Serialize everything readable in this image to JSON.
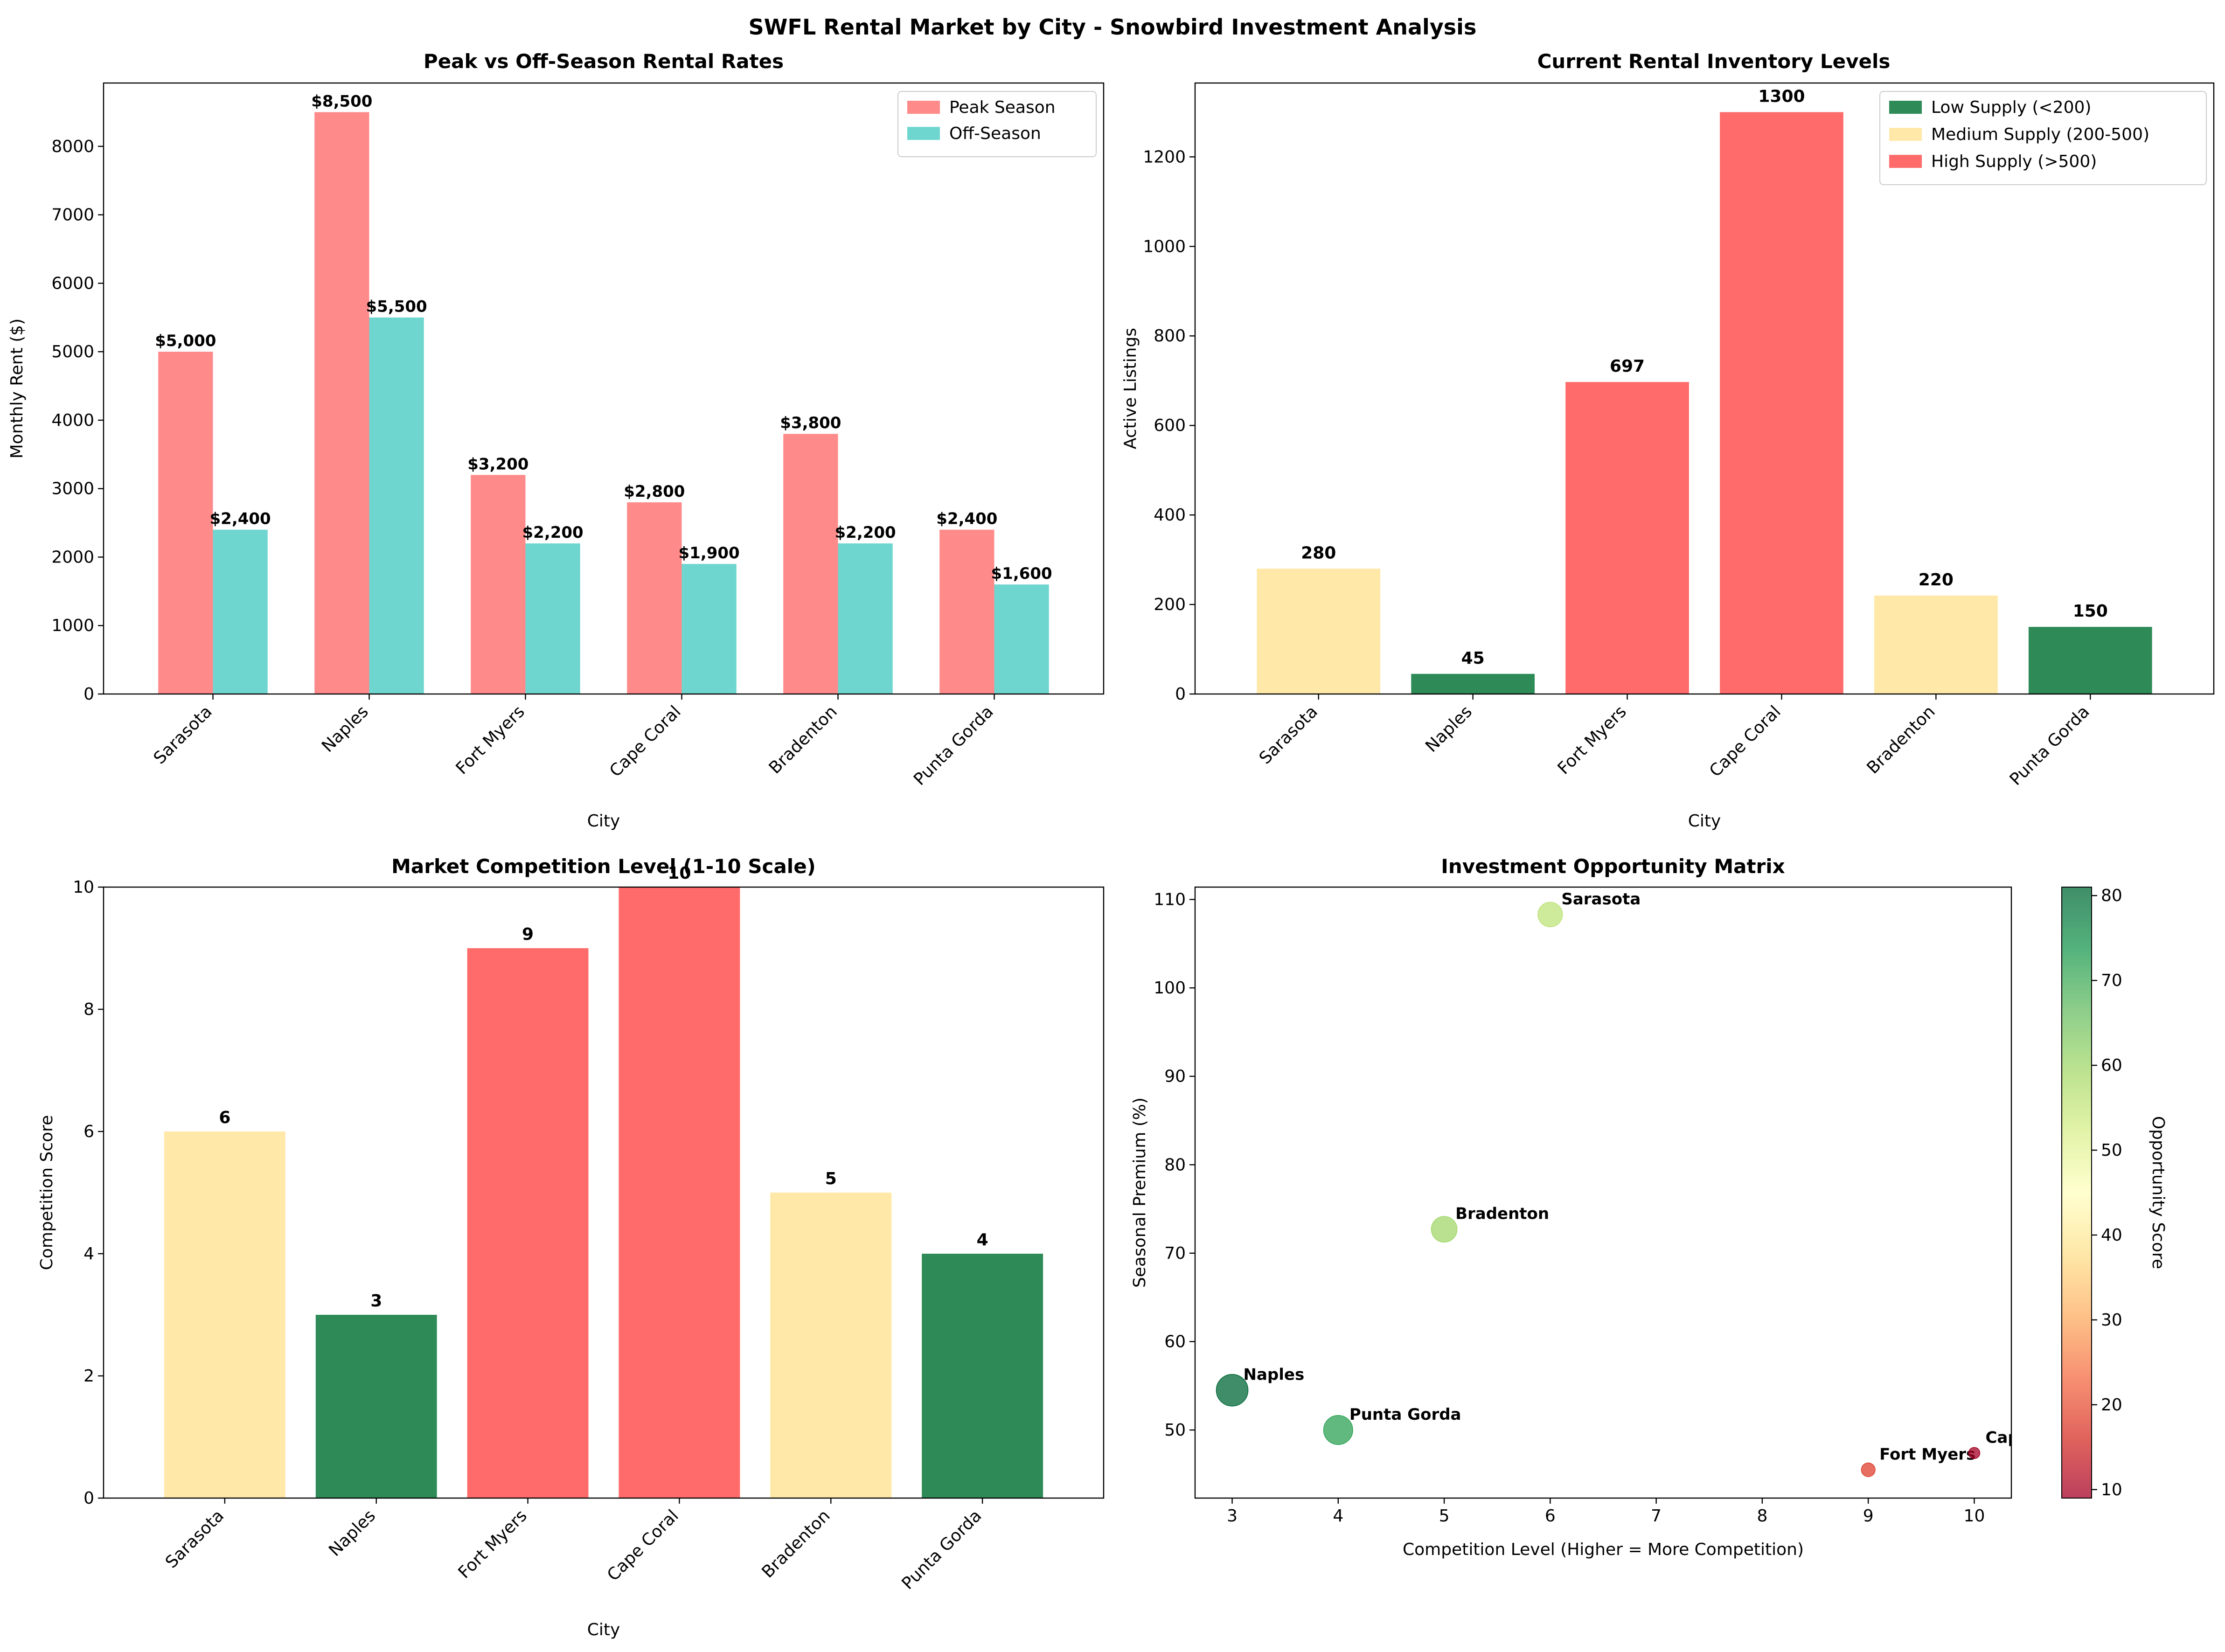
{
  "suptitle": "SWFL Rental Market by City - Snowbird Investment Analysis",
  "colors": {
    "peak": "#FF8A8A",
    "off": "#6FD6CF",
    "low": "#2E8B57",
    "medium": "#FFE8A8",
    "high": "#FF6B6B"
  },
  "chart_data": [
    {
      "id": "rates",
      "type": "bar",
      "title": "Peak vs Off-Season Rental Rates",
      "xlabel": "City",
      "ylabel": "Monthly Rent ($)",
      "categories": [
        "Sarasota",
        "Naples",
        "Fort Myers",
        "Cape Coral",
        "Bradenton",
        "Punta Gorda"
      ],
      "series": [
        {
          "name": "Peak Season",
          "values": [
            5000,
            8500,
            3200,
            2800,
            3800,
            2400
          ],
          "labels": [
            "$5,000",
            "$8,500",
            "$3,200",
            "$2,800",
            "$3,800",
            "$2,400"
          ]
        },
        {
          "name": "Off-Season",
          "values": [
            2400,
            5500,
            2200,
            1900,
            2200,
            1600
          ],
          "labels": [
            "$2,400",
            "$5,500",
            "$2,200",
            "$1,900",
            "$2,200",
            "$1,600"
          ]
        }
      ],
      "ylim": [
        0,
        8925
      ],
      "yticks": [
        0,
        1000,
        2000,
        3000,
        4000,
        5000,
        6000,
        7000,
        8000
      ],
      "legend": "top-right"
    },
    {
      "id": "inventory",
      "type": "bar",
      "title": "Current Rental Inventory Levels",
      "xlabel": "City",
      "ylabel": "Active Listings",
      "categories": [
        "Sarasota",
        "Naples",
        "Fort Myers",
        "Cape Coral",
        "Bradenton",
        "Punta Gorda"
      ],
      "values": [
        280,
        45,
        697,
        1300,
        220,
        150
      ],
      "levels": [
        "medium",
        "low",
        "high",
        "high",
        "medium",
        "low"
      ],
      "ylim": [
        0,
        1365
      ],
      "yticks": [
        0,
        200,
        400,
        600,
        800,
        1000,
        1200
      ],
      "legend_entries": [
        {
          "level": "low",
          "label": "Low Supply (<200)"
        },
        {
          "level": "medium",
          "label": "Medium Supply (200-500)"
        },
        {
          "level": "high",
          "label": "High Supply (>500)"
        }
      ],
      "legend": "top-right"
    },
    {
      "id": "competition",
      "type": "bar",
      "title": "Market Competition Level (1-10 Scale)",
      "xlabel": "City",
      "ylabel": "Competition Score",
      "categories": [
        "Sarasota",
        "Naples",
        "Fort Myers",
        "Cape Coral",
        "Bradenton",
        "Punta Gorda"
      ],
      "values": [
        6,
        3,
        9,
        10,
        5,
        4
      ],
      "levels": [
        "medium",
        "low",
        "high",
        "high",
        "medium",
        "low"
      ],
      "ylim": [
        0,
        10
      ],
      "yticks": [
        0,
        2,
        4,
        6,
        8,
        10
      ]
    },
    {
      "id": "matrix",
      "type": "scatter",
      "title": "Investment Opportunity Matrix",
      "xlabel": "Competition Level (Higher = More Competition)",
      "ylabel": "Seasonal Premium (%)",
      "colorbar_label": "Opportunity Score",
      "points": [
        {
          "city": "Sarasota",
          "x": 6,
          "y": 108.3,
          "score": 56
        },
        {
          "city": "Naples",
          "x": 3,
          "y": 54.5,
          "score": 81
        },
        {
          "city": "Fort Myers",
          "x": 9,
          "y": 45.5,
          "score": 18
        },
        {
          "city": "Cape Coral",
          "x": 10,
          "y": 47.4,
          "score": 9
        },
        {
          "city": "Bradenton",
          "x": 5,
          "y": 72.7,
          "score": 60
        },
        {
          "city": "Punta Gorda",
          "x": 4,
          "y": 50.0,
          "score": 72
        }
      ],
      "xlim": [
        2.65,
        10.35
      ],
      "ylim": [
        42.3,
        111.4
      ],
      "xticks": [
        3,
        4,
        5,
        6,
        7,
        8,
        9,
        10
      ],
      "yticks": [
        50,
        60,
        70,
        80,
        90,
        100,
        110
      ],
      "clim": [
        9,
        81
      ],
      "cticks": [
        10,
        20,
        30,
        40,
        50,
        60,
        70,
        80
      ]
    }
  ]
}
